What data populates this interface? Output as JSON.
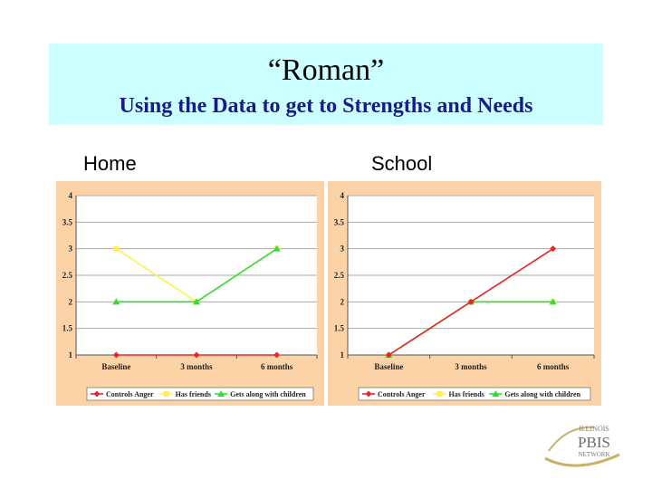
{
  "slide": {
    "title": "“Roman”",
    "subtitle": "Using the Data to get to Strengths and Needs",
    "left_label": "Home",
    "right_label": "School"
  },
  "colors": {
    "title_bg": "#ccffff",
    "chart_bg": "#fcd3a6",
    "plot_bg": "#ffffff",
    "subtitle_text": "#1a1a8c"
  },
  "chart_data": [
    {
      "type": "line",
      "categories": [
        "Baseline",
        "3 months",
        "6 months"
      ],
      "ylim": [
        1,
        4
      ],
      "yticks": [
        "1",
        "1.5",
        "2",
        "2.5",
        "3",
        "3.5",
        "4"
      ],
      "grid": true,
      "legend_position": "bottom",
      "series": [
        {
          "name": "Controls Anger",
          "color": "#e8262a",
          "marker": "diamond",
          "values": [
            1,
            1,
            1
          ]
        },
        {
          "name": "Has friends",
          "color": "#ffee55",
          "marker": "square",
          "values": [
            3,
            2,
            3
          ]
        },
        {
          "name": "Gets along with children",
          "color": "#33dd33",
          "marker": "triangle",
          "values": [
            2,
            2,
            3
          ]
        }
      ]
    },
    {
      "type": "line",
      "categories": [
        "Baseline",
        "3 months",
        "6 months"
      ],
      "ylim": [
        1,
        4
      ],
      "yticks": [
        "1",
        "1.5",
        "2",
        "2.5",
        "3",
        "3.5",
        "4"
      ],
      "grid": true,
      "legend_position": "bottom",
      "series": [
        {
          "name": "Controls Anger",
          "color": "#e8262a",
          "marker": "diamond",
          "values": [
            1,
            2,
            3
          ]
        },
        {
          "name": "Has friends",
          "color": "#ffee55",
          "marker": "square",
          "values": [
            1,
            2,
            2
          ]
        },
        {
          "name": "Gets along with children",
          "color": "#33dd33",
          "marker": "triangle",
          "values": [
            1,
            2,
            2
          ]
        }
      ]
    }
  ],
  "logo": {
    "line1": "ILLINOIS",
    "line2": "PBIS",
    "line3": "NETWORK"
  }
}
